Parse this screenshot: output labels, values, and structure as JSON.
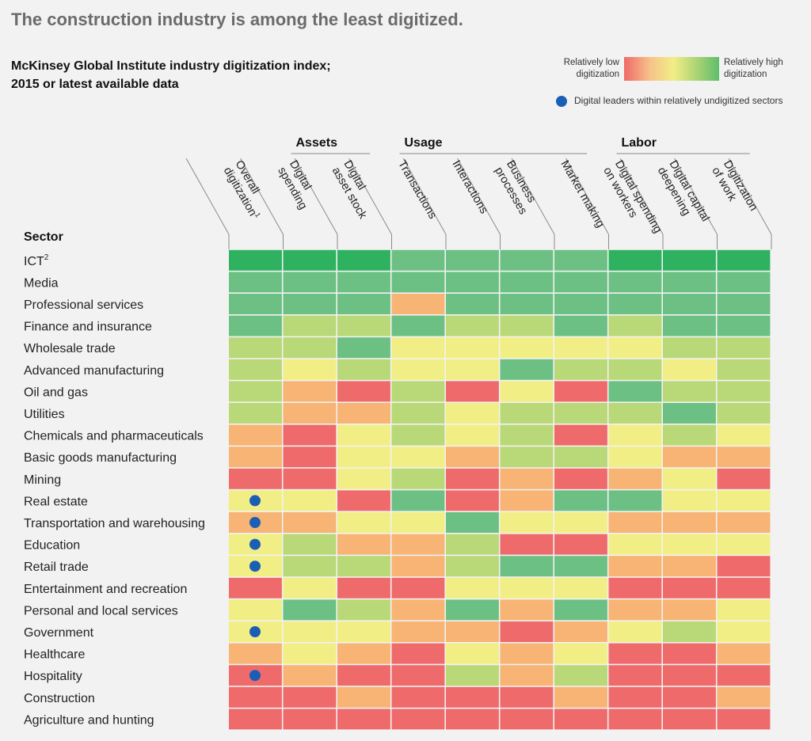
{
  "headline": "The construction industry is among the least digitized.",
  "subtitle_line1": "McKinsey Global Institute industry digitization index;",
  "subtitle_line2": "2015 or latest available data",
  "legend": {
    "low_line1": "Relatively low",
    "low_line2": "digitization",
    "high_line1": "Relatively high",
    "high_line2": "digitization",
    "dot_label": "Digital leaders within relatively undigitized sectors",
    "dot_color": "#1a5fb4"
  },
  "chart_data": {
    "type": "heatmap",
    "scale": [
      "Relatively low digitization",
      "Relatively high digitization"
    ],
    "level_colors": {
      "1": "#ef6a6a",
      "2": "#f7b474",
      "3": "#f2ee86",
      "4": "#b9d877",
      "5": "#6cc084",
      "6": "#2eb260"
    },
    "sector_header": "Sector",
    "groups": [
      {
        "label": "Assets",
        "span": [
          1,
          2
        ]
      },
      {
        "label": "Usage",
        "span": [
          3,
          6
        ]
      },
      {
        "label": "Labor",
        "span": [
          7,
          9
        ]
      }
    ],
    "columns": [
      {
        "line1": "Overall",
        "line2": "digitization",
        "sup": "1"
      },
      {
        "line1": "Digital",
        "line2": "spending"
      },
      {
        "line1": "Digital",
        "line2": "asset stock"
      },
      {
        "line1": "Transactions",
        "line2": ""
      },
      {
        "line1": "Interactions",
        "line2": ""
      },
      {
        "line1": "Business",
        "line2": "processes"
      },
      {
        "line1": "Market making",
        "line2": ""
      },
      {
        "line1": "Digital spending",
        "line2": "on workers"
      },
      {
        "line1": "Digital capital",
        "line2": "deepening"
      },
      {
        "line1": "Digitization",
        "line2": "of work"
      }
    ],
    "rows": [
      {
        "sector": "ICT",
        "sup": "2",
        "values": [
          6,
          6,
          6,
          5,
          5,
          5,
          5,
          6,
          6,
          6
        ],
        "leader": false
      },
      {
        "sector": "Media",
        "values": [
          5,
          5,
          5,
          5,
          5,
          5,
          5,
          5,
          5,
          5
        ],
        "leader": false
      },
      {
        "sector": "Professional services",
        "values": [
          5,
          5,
          5,
          2,
          5,
          5,
          5,
          5,
          5,
          5
        ],
        "leader": false
      },
      {
        "sector": "Finance and insurance",
        "values": [
          5,
          4,
          4,
          5,
          4,
          4,
          5,
          4,
          5,
          5
        ],
        "leader": false
      },
      {
        "sector": "Wholesale trade",
        "values": [
          4,
          4,
          5,
          3,
          3,
          3,
          3,
          3,
          4,
          4
        ],
        "leader": false
      },
      {
        "sector": "Advanced manufacturing",
        "values": [
          4,
          3,
          4,
          3,
          3,
          5,
          4,
          4,
          3,
          4
        ],
        "leader": false
      },
      {
        "sector": "Oil and gas",
        "values": [
          4,
          2,
          1,
          4,
          1,
          3,
          1,
          5,
          4,
          4
        ],
        "leader": false
      },
      {
        "sector": "Utilities",
        "values": [
          4,
          2,
          2,
          4,
          3,
          4,
          4,
          4,
          5,
          4
        ],
        "leader": false
      },
      {
        "sector": "Chemicals and pharmaceuticals",
        "values": [
          2,
          1,
          3,
          4,
          3,
          4,
          1,
          3,
          4,
          3
        ],
        "leader": false
      },
      {
        "sector": "Basic goods manufacturing",
        "values": [
          2,
          1,
          3,
          3,
          2,
          4,
          4,
          3,
          2,
          2
        ],
        "leader": false
      },
      {
        "sector": "Mining",
        "values": [
          1,
          1,
          3,
          4,
          1,
          2,
          1,
          2,
          3,
          1
        ],
        "leader": false
      },
      {
        "sector": "Real estate",
        "values": [
          3,
          3,
          1,
          5,
          1,
          2,
          5,
          5,
          3,
          3
        ],
        "leader": true
      },
      {
        "sector": "Transportation and warehousing",
        "values": [
          2,
          2,
          3,
          3,
          5,
          3,
          3,
          2,
          2,
          2
        ],
        "leader": true
      },
      {
        "sector": "Education",
        "values": [
          3,
          4,
          2,
          2,
          4,
          1,
          1,
          3,
          3,
          3
        ],
        "leader": true
      },
      {
        "sector": "Retail trade",
        "values": [
          3,
          4,
          4,
          2,
          4,
          5,
          5,
          2,
          2,
          1
        ],
        "leader": true
      },
      {
        "sector": "Entertainment and recreation",
        "values": [
          1,
          3,
          1,
          1,
          3,
          3,
          3,
          1,
          1,
          1
        ],
        "leader": false
      },
      {
        "sector": "Personal and local services",
        "values": [
          3,
          5,
          4,
          2,
          5,
          2,
          5,
          2,
          2,
          3
        ],
        "leader": false
      },
      {
        "sector": "Government",
        "values": [
          3,
          3,
          3,
          2,
          2,
          1,
          2,
          3,
          4,
          3
        ],
        "leader": true
      },
      {
        "sector": "Healthcare",
        "values": [
          2,
          3,
          2,
          1,
          3,
          2,
          3,
          1,
          1,
          2
        ],
        "leader": false
      },
      {
        "sector": "Hospitality",
        "values": [
          1,
          2,
          1,
          1,
          4,
          2,
          4,
          1,
          1,
          1
        ],
        "leader": true
      },
      {
        "sector": "Construction",
        "values": [
          1,
          1,
          2,
          1,
          1,
          1,
          2,
          1,
          1,
          2
        ],
        "leader": false
      },
      {
        "sector": "Agriculture and hunting",
        "values": [
          1,
          1,
          1,
          1,
          1,
          1,
          1,
          1,
          1,
          1
        ],
        "leader": false
      }
    ]
  }
}
